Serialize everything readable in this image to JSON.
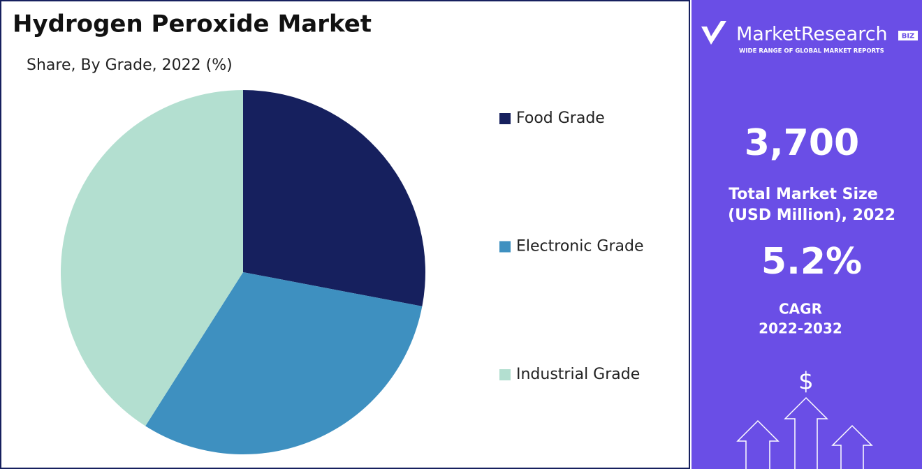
{
  "chart_data": {
    "type": "pie",
    "title": "Hydrogen Peroxide Market",
    "subtitle": "Share, By Grade, 2022 (%)",
    "categories": [
      "Food Grade",
      "Electronic Grade",
      "Industrial Grade"
    ],
    "values": [
      28,
      31,
      41
    ],
    "colors": [
      "#16205e",
      "#3e90c0",
      "#b3dfd0"
    ],
    "legend": "right"
  },
  "sidebar": {
    "logo": "MarketResearch",
    "logo_badge": "BIZ",
    "tagline": "WIDE RANGE OF GLOBAL MARKET REPORTS",
    "market_size": "3,700",
    "market_size_label": [
      "Total Market Size",
      "(USD Million), 2022"
    ],
    "cagr": "5.2%",
    "cagr_label": [
      "CAGR",
      "2022-2032"
    ],
    "icon": "$"
  }
}
